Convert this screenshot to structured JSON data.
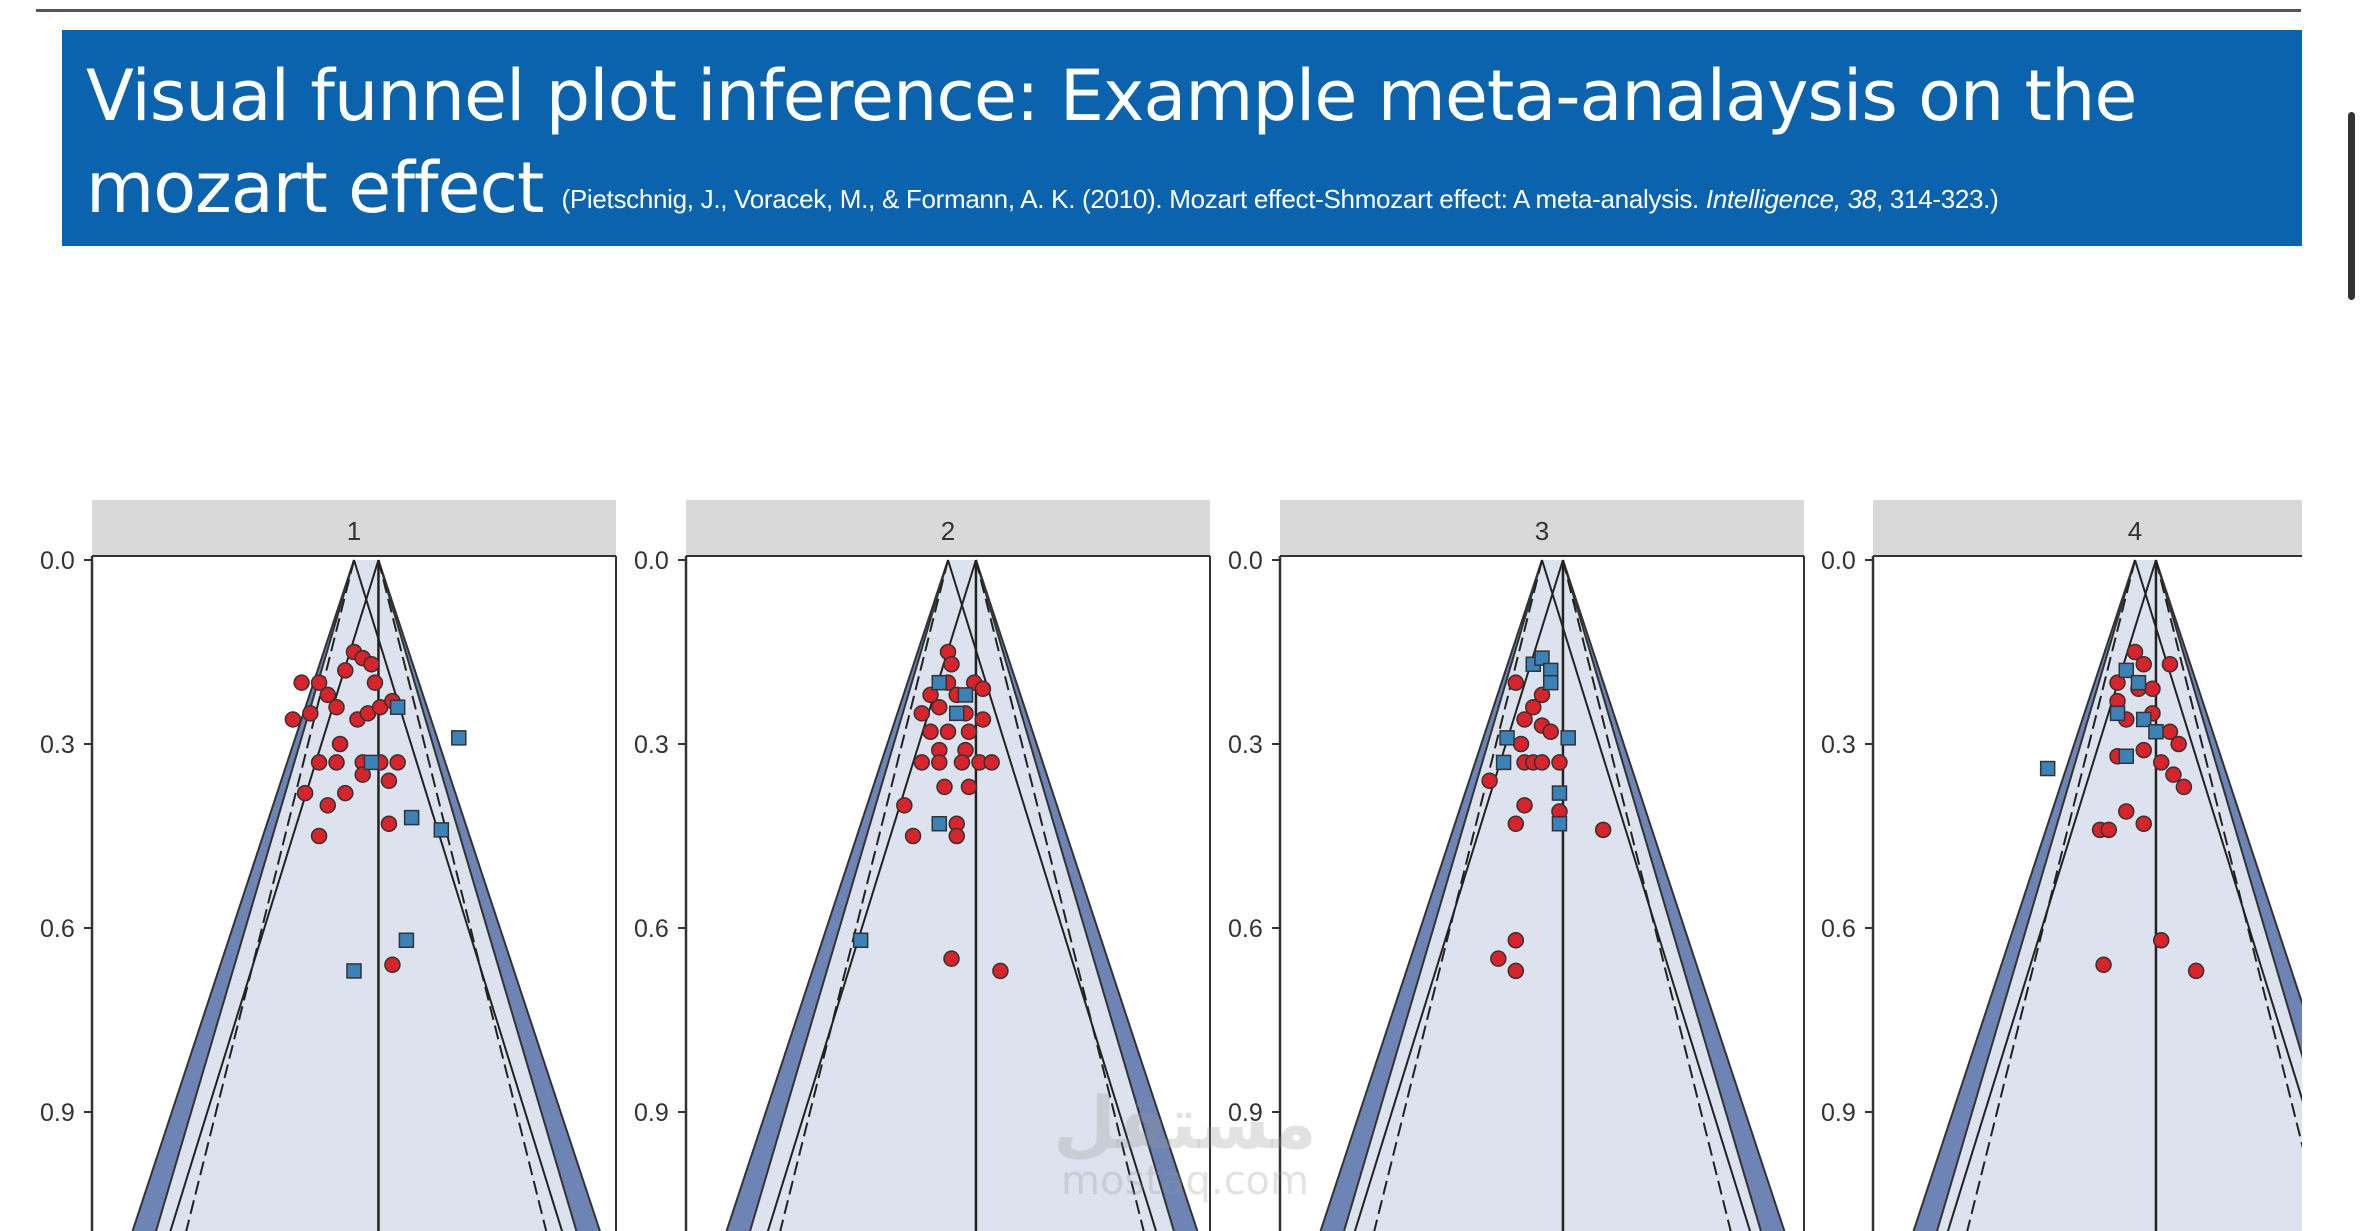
{
  "header": {
    "title_line1": "Visual funnel plot inference: Example meta-analaysis on the",
    "title_line2": "mozart effect",
    "citation_pre": "(Pietschnig, J., Voracek, M., & Formann, A. K. (2010). Mozart effect-Shmozart effect: A meta-analysis. ",
    "citation_journal": "Intelligence, 38",
    "citation_post": ", 314-323.)"
  },
  "colors": {
    "banner": "#0b63ad",
    "panel_strip": "#d9d9d9",
    "band": "#6d84b4",
    "funnel_fill": "#dce3ee",
    "observed_point": "#d8232a",
    "imputed_point": "#3b82b8"
  },
  "watermark": {
    "arabic": "مستقل",
    "latin": "mostaq.com"
  },
  "chart_data": {
    "type": "scatter",
    "subtype": "funnel plot lineup",
    "y_axis": {
      "ticks": [
        "0.0",
        "0.3",
        "0.6",
        "0.9"
      ],
      "tick_values": [
        0,
        0.3,
        0.6,
        0.9
      ],
      "range": [
        0,
        1.1
      ],
      "reversed": true
    },
    "x_range": [
      -1.5,
      1.5
    ],
    "panels": [
      {
        "label": "1",
        "center": 0.0,
        "center_alt": 0.14,
        "observed": [
          [
            -0.2,
            0.2
          ],
          [
            -0.15,
            0.22
          ],
          [
            -0.05,
            0.18
          ],
          [
            0.0,
            0.15
          ],
          [
            0.05,
            0.16
          ],
          [
            0.1,
            0.17
          ],
          [
            0.12,
            0.2
          ],
          [
            -0.3,
            0.2
          ],
          [
            -0.25,
            0.25
          ],
          [
            -0.35,
            0.26
          ],
          [
            -0.1,
            0.24
          ],
          [
            0.02,
            0.26
          ],
          [
            0.08,
            0.25
          ],
          [
            0.15,
            0.24
          ],
          [
            0.22,
            0.23
          ],
          [
            -0.08,
            0.3
          ],
          [
            -0.2,
            0.33
          ],
          [
            -0.1,
            0.33
          ],
          [
            0.05,
            0.33
          ],
          [
            0.15,
            0.33
          ],
          [
            0.25,
            0.33
          ],
          [
            -0.28,
            0.38
          ],
          [
            0.2,
            0.36
          ],
          [
            -0.05,
            0.38
          ],
          [
            0.05,
            0.35
          ],
          [
            -0.15,
            0.4
          ],
          [
            -0.2,
            0.45
          ],
          [
            0.2,
            0.43
          ],
          [
            0.22,
            0.66
          ]
        ],
        "imputed": [
          [
            0.25,
            0.24
          ],
          [
            0.6,
            0.29
          ],
          [
            0.5,
            0.44
          ],
          [
            0.33,
            0.42
          ],
          [
            0.3,
            0.62
          ],
          [
            0.0,
            0.67
          ],
          [
            0.1,
            0.33
          ]
        ]
      },
      {
        "label": "2",
        "center": 0.0,
        "center_alt": 0.16,
        "observed": [
          [
            0.0,
            0.15
          ],
          [
            0.02,
            0.17
          ],
          [
            0.0,
            0.2
          ],
          [
            -0.1,
            0.22
          ],
          [
            0.05,
            0.22
          ],
          [
            0.15,
            0.2
          ],
          [
            0.2,
            0.21
          ],
          [
            -0.15,
            0.25
          ],
          [
            -0.05,
            0.24
          ],
          [
            0.1,
            0.25
          ],
          [
            0.2,
            0.26
          ],
          [
            -0.1,
            0.28
          ],
          [
            0.0,
            0.28
          ],
          [
            0.12,
            0.28
          ],
          [
            -0.05,
            0.31
          ],
          [
            0.1,
            0.31
          ],
          [
            -0.15,
            0.33
          ],
          [
            -0.05,
            0.33
          ],
          [
            0.08,
            0.33
          ],
          [
            0.18,
            0.33
          ],
          [
            0.25,
            0.33
          ],
          [
            -0.02,
            0.37
          ],
          [
            0.12,
            0.37
          ],
          [
            -0.25,
            0.4
          ],
          [
            0.05,
            0.43
          ],
          [
            0.05,
            0.45
          ],
          [
            -0.2,
            0.45
          ],
          [
            0.02,
            0.65
          ],
          [
            0.3,
            0.67
          ]
        ],
        "imputed": [
          [
            -0.05,
            0.2
          ],
          [
            0.1,
            0.22
          ],
          [
            0.05,
            0.25
          ],
          [
            -0.05,
            0.43
          ],
          [
            -0.5,
            0.62
          ]
        ]
      },
      {
        "label": "3",
        "center": 0.0,
        "center_alt": 0.12,
        "observed": [
          [
            -0.15,
            0.2
          ],
          [
            0.0,
            0.22
          ],
          [
            -0.05,
            0.24
          ],
          [
            -0.1,
            0.26
          ],
          [
            0.0,
            0.27
          ],
          [
            0.05,
            0.28
          ],
          [
            -0.12,
            0.3
          ],
          [
            -0.3,
            0.36
          ],
          [
            -0.1,
            0.33
          ],
          [
            -0.05,
            0.33
          ],
          [
            0.0,
            0.33
          ],
          [
            0.1,
            0.33
          ],
          [
            -0.1,
            0.4
          ],
          [
            -0.15,
            0.43
          ],
          [
            0.1,
            0.41
          ],
          [
            0.35,
            0.44
          ],
          [
            -0.15,
            0.62
          ],
          [
            -0.25,
            0.65
          ],
          [
            -0.15,
            0.67
          ]
        ],
        "imputed": [
          [
            -0.05,
            0.17
          ],
          [
            0.0,
            0.16
          ],
          [
            0.05,
            0.18
          ],
          [
            0.05,
            0.2
          ],
          [
            0.15,
            0.29
          ],
          [
            -0.2,
            0.29
          ],
          [
            -0.22,
            0.33
          ],
          [
            0.1,
            0.38
          ],
          [
            0.1,
            0.43
          ]
        ]
      },
      {
        "label": "4",
        "center": 0.0,
        "center_alt": 0.12,
        "observed": [
          [
            0.0,
            0.15
          ],
          [
            0.05,
            0.17
          ],
          [
            0.2,
            0.17
          ],
          [
            -0.1,
            0.2
          ],
          [
            0.02,
            0.21
          ],
          [
            0.1,
            0.21
          ],
          [
            -0.1,
            0.23
          ],
          [
            0.1,
            0.25
          ],
          [
            -0.05,
            0.26
          ],
          [
            0.2,
            0.28
          ],
          [
            0.25,
            0.3
          ],
          [
            -0.1,
            0.32
          ],
          [
            0.05,
            0.31
          ],
          [
            0.15,
            0.33
          ],
          [
            0.22,
            0.35
          ],
          [
            0.28,
            0.37
          ],
          [
            -0.05,
            0.41
          ],
          [
            0.05,
            0.43
          ],
          [
            -0.2,
            0.44
          ],
          [
            -0.15,
            0.44
          ],
          [
            -0.18,
            0.66
          ],
          [
            0.15,
            0.62
          ],
          [
            0.35,
            0.67
          ]
        ],
        "imputed": [
          [
            -0.05,
            0.18
          ],
          [
            0.02,
            0.2
          ],
          [
            -0.1,
            0.25
          ],
          [
            0.05,
            0.26
          ],
          [
            0.12,
            0.28
          ],
          [
            -0.05,
            0.32
          ],
          [
            -0.5,
            0.34
          ]
        ]
      }
    ]
  }
}
